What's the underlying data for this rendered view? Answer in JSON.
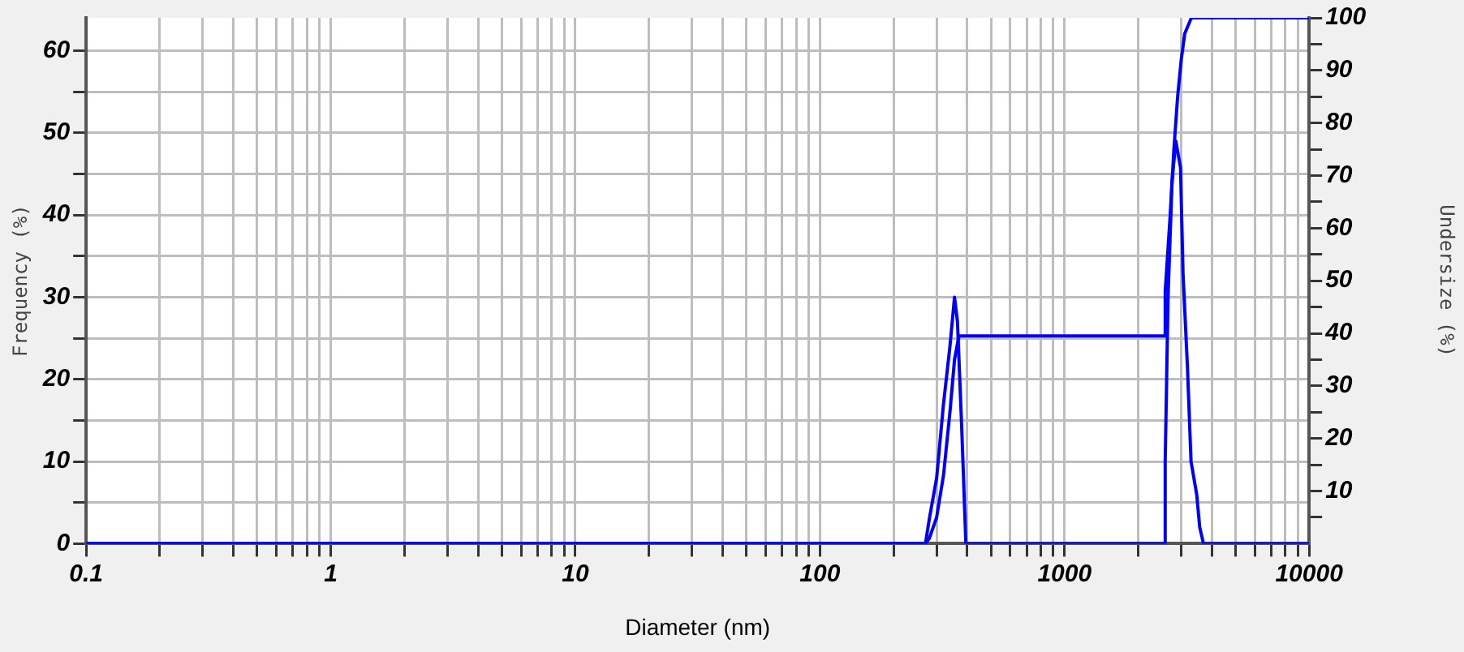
{
  "chart_data": {
    "type": "line",
    "xlabel": "Diameter (nm)",
    "ylabel": "Frequency (%)",
    "y2label": "Undersize (%)",
    "log": "x",
    "grid": true,
    "legend": false,
    "marker": "none",
    "line_style": "solid",
    "xlim": [
      0.1,
      10000
    ],
    "xticks": [
      0.1,
      {
        "value": 0.2,
        "label": null
      },
      {
        "value": 0.3,
        "label": null
      },
      {
        "value": 0.4,
        "label": null
      },
      {
        "value": 0.5,
        "label": null
      },
      {
        "value": 0.6,
        "label": null
      },
      {
        "value": 0.7,
        "label": null
      },
      {
        "value": 0.8,
        "label": null
      },
      {
        "value": 0.9,
        "label": null
      },
      1,
      {
        "value": 2,
        "label": null
      },
      {
        "value": 3,
        "label": null
      },
      {
        "value": 4,
        "label": null
      },
      {
        "value": 5,
        "label": null
      },
      {
        "value": 6,
        "label": null
      },
      {
        "value": 7,
        "label": null
      },
      {
        "value": 8,
        "label": null
      },
      {
        "value": 9,
        "label": null
      },
      10,
      {
        "value": 20,
        "label": null
      },
      {
        "value": 30,
        "label": null
      },
      {
        "value": 40,
        "label": null
      },
      {
        "value": 50,
        "label": null
      },
      {
        "value": 60,
        "label": null
      },
      {
        "value": 70,
        "label": null
      },
      {
        "value": 80,
        "label": null
      },
      {
        "value": 90,
        "label": null
      },
      100,
      {
        "value": 200,
        "label": null
      },
      {
        "value": 300,
        "label": null
      },
      {
        "value": 400,
        "label": null
      },
      {
        "value": 500,
        "label": null
      },
      {
        "value": 600,
        "label": null
      },
      {
        "value": 700,
        "label": null
      },
      {
        "value": 800,
        "label": null
      },
      {
        "value": 900,
        "label": null
      },
      1000,
      {
        "value": 2000,
        "label": null
      },
      {
        "value": 3000,
        "label": null
      },
      {
        "value": 4000,
        "label": null
      },
      {
        "value": 5000,
        "label": null
      },
      {
        "value": 6000,
        "label": null
      },
      {
        "value": 7000,
        "label": null
      },
      {
        "value": 8000,
        "label": null
      },
      {
        "value": 9000,
        "label": null
      },
      10000
    ],
    "ylim": [
      0,
      64
    ],
    "yticks": [
      0,
      {
        "value": 5,
        "label": null
      },
      10,
      {
        "value": 15,
        "label": null
      },
      20,
      {
        "value": 25,
        "label": null
      },
      30,
      {
        "value": 35,
        "label": null
      },
      40,
      {
        "value": 45,
        "label": null
      },
      50,
      {
        "value": 55,
        "label": null
      },
      60
    ],
    "y2lim": [
      0,
      100
    ],
    "y2ticks": [
      {
        "value": 5,
        "label": null
      },
      10,
      {
        "value": 15,
        "label": null
      },
      20,
      {
        "value": 25,
        "label": null
      },
      30,
      {
        "value": 35,
        "label": null
      },
      40,
      {
        "value": 45,
        "label": null
      },
      50,
      {
        "value": 55,
        "label": null
      },
      60,
      {
        "value": 65,
        "label": null
      },
      70,
      {
        "value": 75,
        "label": null
      },
      80,
      {
        "value": 85,
        "label": null
      },
      90,
      {
        "value": 95,
        "label": null
      },
      100
    ],
    "series": [
      {
        "color": "#0000ff",
        "x": [
          0.1,
          270,
          280,
          300,
          320,
          340,
          355,
          365,
          380,
          395,
          2500,
          2570,
          2580,
          2650,
          2750,
          2850,
          2980,
          3050,
          3180,
          3290,
          3470,
          3570,
          3700,
          10000
        ],
        "values": [
          0,
          0,
          3,
          8,
          17,
          24,
          30,
          27,
          14,
          0,
          0,
          0,
          10,
          30,
          44,
          49,
          45.8,
          33,
          21.6,
          10,
          6,
          2,
          0,
          0
        ]
      },
      {
        "color": "#0000ff",
        "axis": "y2",
        "x": [
          0.1,
          270,
          280,
          300,
          320,
          340,
          355,
          370,
          2550,
          2580,
          2700,
          2800,
          2900,
          3000,
          3100,
          3300,
          10000
        ],
        "values": [
          0,
          0,
          1,
          5,
          13,
          25,
          35,
          39.5,
          39.5,
          48,
          62,
          75,
          85,
          92,
          97,
          100,
          100
        ]
      }
    ]
  }
}
